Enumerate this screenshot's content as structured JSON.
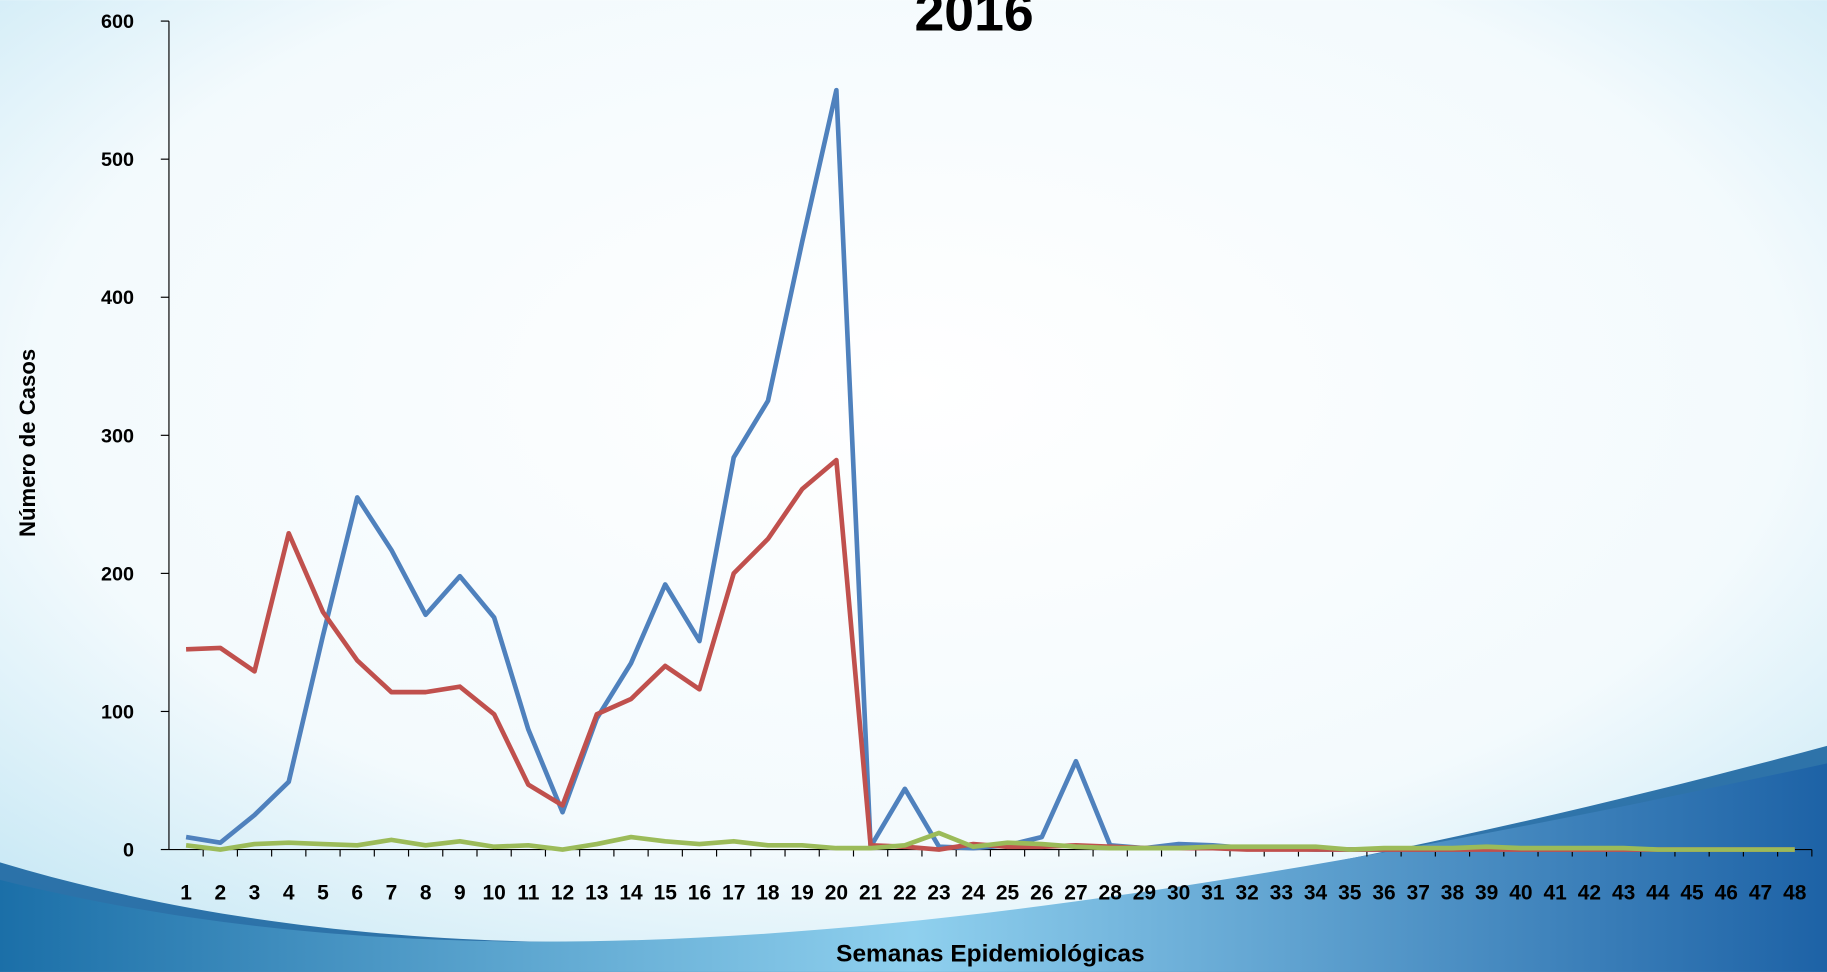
{
  "chart_data": {
    "type": "line",
    "title": "2016",
    "x_label": "Semanas Epidemiológicas",
    "y_label": "Número de Casos",
    "categories": [
      "1",
      "2",
      "3",
      "4",
      "5",
      "6",
      "7",
      "8",
      "9",
      "10",
      "11",
      "12",
      "13",
      "14",
      "15",
      "16",
      "17",
      "18",
      "19",
      "20",
      "21",
      "22",
      "23",
      "24",
      "25",
      "26",
      "27",
      "28",
      "29",
      "30",
      "31",
      "32",
      "33",
      "34",
      "35",
      "36",
      "37",
      "38",
      "39",
      "40",
      "41",
      "42",
      "43",
      "44",
      "45",
      "46",
      "47",
      "48"
    ],
    "series": [
      {
        "color": "#4f81bd",
        "values": [
          9,
          5,
          25,
          49,
          155,
          255,
          217,
          170,
          198,
          168,
          87,
          27,
          95,
          135,
          192,
          151,
          284,
          325,
          440,
          550,
          2,
          44,
          2,
          1,
          3,
          9,
          64,
          3,
          1,
          4,
          3,
          1,
          1,
          0,
          0,
          0,
          0,
          0,
          0,
          0,
          0,
          0,
          0,
          0,
          0,
          0,
          0,
          0
        ]
      },
      {
        "color": "#c0504d",
        "values": [
          145,
          146,
          129,
          229,
          172,
          137,
          114,
          114,
          118,
          98,
          47,
          32,
          98,
          109,
          133,
          116,
          200,
          225,
          261,
          282,
          3,
          2,
          0,
          4,
          2,
          2,
          3,
          2,
          1,
          1,
          1,
          0,
          0,
          0,
          0,
          0,
          0,
          0,
          0,
          0,
          0,
          0,
          0,
          0,
          0,
          0,
          0,
          0
        ]
      },
      {
        "color": "#9bbb59",
        "values": [
          3,
          0,
          4,
          5,
          4,
          3,
          7,
          3,
          6,
          2,
          3,
          0,
          4,
          9,
          6,
          4,
          6,
          3,
          3,
          1,
          1,
          3,
          12,
          2,
          5,
          4,
          2,
          1,
          1,
          1,
          2,
          2,
          2,
          2,
          0,
          1,
          1,
          1,
          2,
          1,
          1,
          1,
          1,
          0,
          0,
          0,
          0,
          0
        ]
      }
    ],
    "ylim": [
      0,
      600
    ],
    "yticks": [
      0,
      100,
      200,
      300,
      400,
      500,
      600
    ]
  }
}
